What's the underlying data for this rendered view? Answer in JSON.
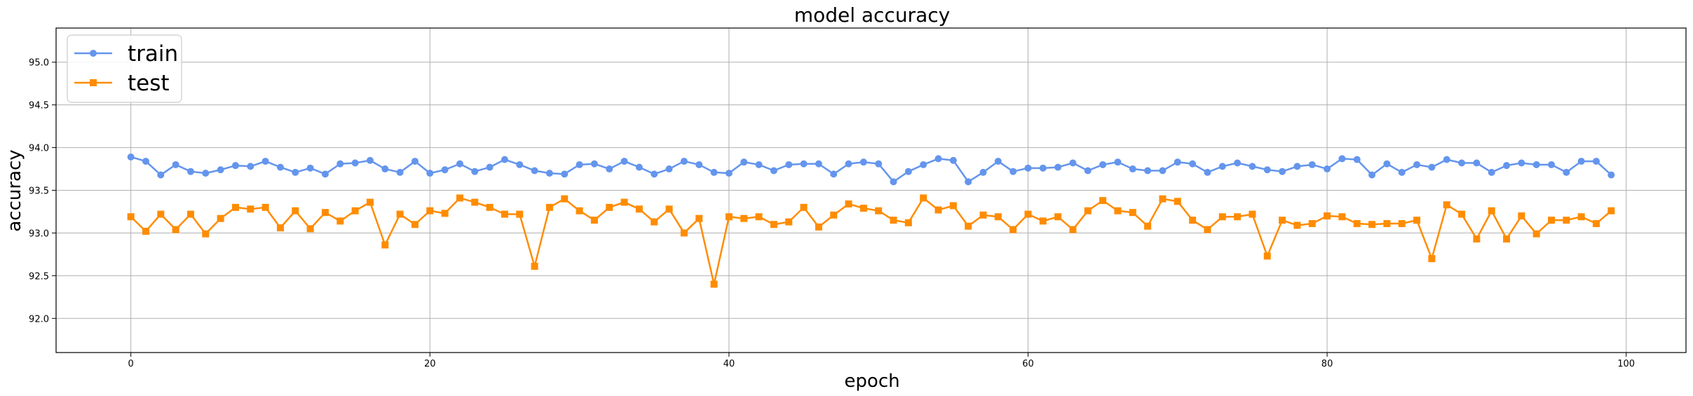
{
  "chart_data": {
    "type": "line",
    "title": "model accuracy",
    "xlabel": "epoch",
    "ylabel": "accuracy",
    "xlim": [
      -5,
      104
    ],
    "ylim": [
      91.6,
      95.4
    ],
    "xticks": [
      0,
      20,
      40,
      60,
      80,
      100
    ],
    "yticks": [
      92.0,
      92.5,
      93.0,
      93.5,
      94.0,
      94.5,
      95.0
    ],
    "grid": true,
    "legend_position": "top-left",
    "series": [
      {
        "name": "train",
        "color": "#6495ED",
        "marker": "circle",
        "values": [
          93.89,
          93.84,
          93.68,
          93.8,
          93.72,
          93.7,
          93.74,
          93.79,
          93.78,
          93.84,
          93.77,
          93.71,
          93.76,
          93.69,
          93.81,
          93.82,
          93.85,
          93.75,
          93.71,
          93.84,
          93.7,
          93.74,
          93.81,
          93.72,
          93.77,
          93.86,
          93.8,
          93.73,
          93.7,
          93.69,
          93.8,
          93.81,
          93.75,
          93.84,
          93.77,
          93.69,
          93.75,
          93.84,
          93.8,
          93.71,
          93.7,
          93.83,
          93.8,
          93.73,
          93.8,
          93.81,
          93.81,
          93.69,
          93.81,
          93.83,
          93.81,
          93.6,
          93.72,
          93.8,
          93.87,
          93.85,
          93.6,
          93.71,
          93.84,
          93.72,
          93.76,
          93.76,
          93.77,
          93.82,
          93.73,
          93.8,
          93.83,
          93.75,
          93.73,
          93.73,
          93.83,
          93.81,
          93.71,
          93.78,
          93.82,
          93.78,
          93.74,
          93.72,
          93.78,
          93.8,
          93.75,
          93.87,
          93.86,
          93.68,
          93.81,
          93.71,
          93.8,
          93.77,
          93.86,
          93.82,
          93.82,
          93.71,
          93.79,
          93.82,
          93.8,
          93.8,
          93.71,
          93.84,
          93.84,
          93.68
        ]
      },
      {
        "name": "test",
        "color": "#FF8C00",
        "marker": "square",
        "values": [
          93.19,
          93.02,
          93.22,
          93.04,
          93.22,
          92.99,
          93.17,
          93.3,
          93.28,
          93.3,
          93.06,
          93.26,
          93.05,
          93.24,
          93.14,
          93.26,
          93.36,
          92.86,
          93.22,
          93.1,
          93.26,
          93.23,
          93.41,
          93.36,
          93.3,
          93.22,
          93.22,
          92.61,
          93.3,
          93.4,
          93.26,
          93.15,
          93.3,
          93.36,
          93.28,
          93.13,
          93.28,
          93.0,
          93.17,
          92.4,
          93.19,
          93.17,
          93.19,
          93.1,
          93.13,
          93.3,
          93.07,
          93.21,
          93.34,
          93.29,
          93.26,
          93.15,
          93.12,
          93.41,
          93.27,
          93.32,
          93.08,
          93.21,
          93.19,
          93.04,
          93.22,
          93.14,
          93.19,
          93.04,
          93.26,
          93.38,
          93.26,
          93.24,
          93.08,
          93.4,
          93.37,
          93.15,
          93.04,
          93.19,
          93.19,
          93.22,
          92.73,
          93.15,
          93.09,
          93.11,
          93.2,
          93.19,
          93.11,
          93.1,
          93.11,
          93.11,
          93.15,
          92.7,
          93.33,
          93.22,
          92.93,
          93.26,
          92.93,
          93.2,
          92.99,
          93.15,
          93.15,
          93.19,
          93.11,
          93.26
        ]
      }
    ]
  }
}
